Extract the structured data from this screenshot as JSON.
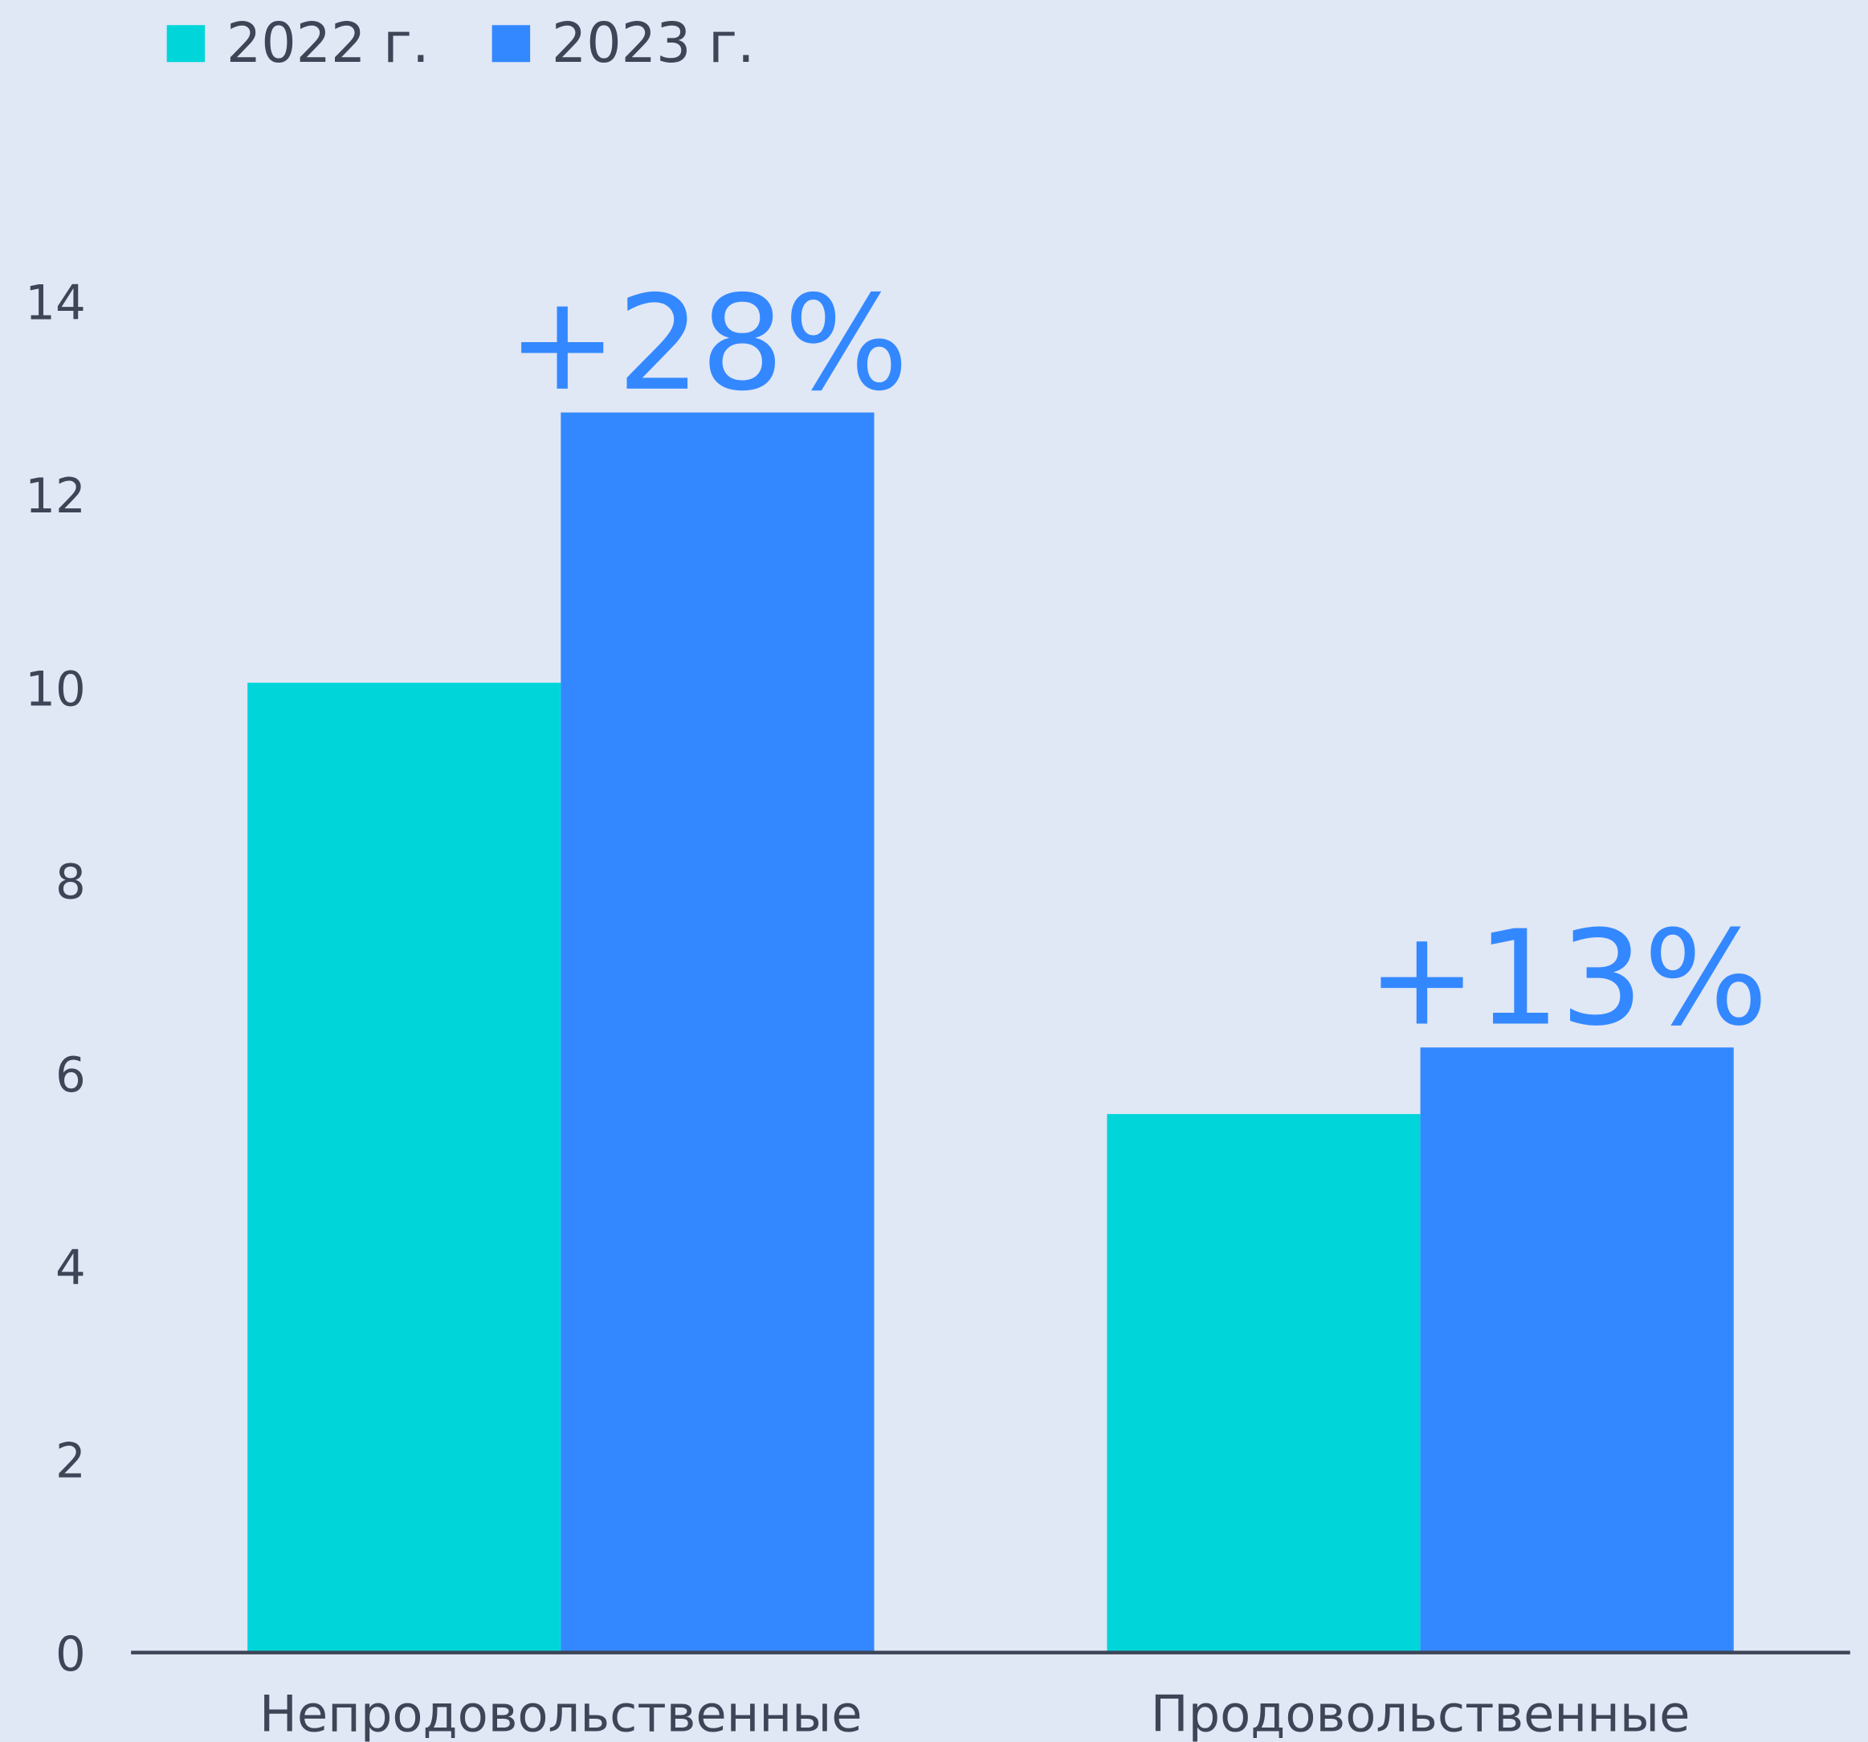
{
  "chart_data": {
    "type": "bar",
    "categories": [
      "Непродовольственные",
      "Продовольственные"
    ],
    "series": [
      {
        "name": "2022 г.",
        "color": "#00d6da",
        "values": [
          10.05,
          5.58
        ]
      },
      {
        "name": "2023 г.",
        "color": "#3388ff",
        "values": [
          12.85,
          6.27
        ]
      }
    ],
    "annotations": [
      "+28%",
      "+13%"
    ],
    "ylim": [
      0,
      14
    ],
    "yticks": [
      0,
      2,
      4,
      6,
      8,
      10,
      12,
      14
    ],
    "grid": false,
    "legend": "top-left"
  }
}
